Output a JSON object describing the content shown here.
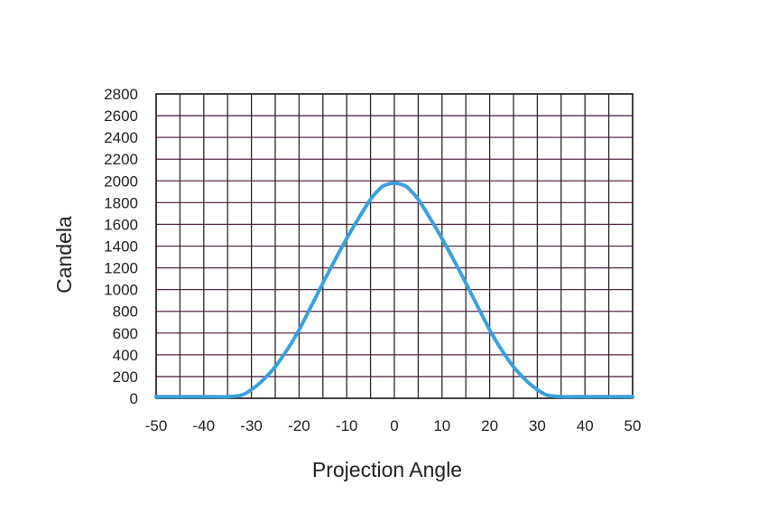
{
  "chart_data": {
    "type": "line",
    "title": "",
    "xlabel": "Projection Angle",
    "ylabel": "Candela",
    "xlim": [
      -50,
      50
    ],
    "ylim": [
      0,
      2800
    ],
    "xticks": [
      -50,
      -40,
      -30,
      -20,
      -10,
      0,
      10,
      20,
      30,
      40,
      50
    ],
    "yticks": [
      0,
      200,
      400,
      600,
      800,
      1000,
      1200,
      1400,
      1600,
      1800,
      2000,
      2200,
      2400,
      2600,
      2800
    ],
    "x_minor_step": 5,
    "grid": true,
    "legend": "none",
    "series": [
      {
        "color": "#3aa0dc",
        "x": [
          -50,
          -45,
          -40,
          -35,
          -32,
          -30,
          -28,
          -25,
          -22,
          -20,
          -18,
          -15,
          -12,
          -10,
          -8,
          -5,
          -3,
          -2,
          0,
          2,
          3,
          5,
          8,
          10,
          12,
          15,
          18,
          20,
          22,
          25,
          28,
          30,
          32,
          35,
          40,
          45,
          50
        ],
        "y": [
          15,
          15,
          15,
          15,
          30,
          80,
          150,
          290,
          480,
          630,
          800,
          1060,
          1310,
          1470,
          1620,
          1830,
          1930,
          1960,
          1980,
          1960,
          1930,
          1830,
          1620,
          1470,
          1310,
          1060,
          800,
          630,
          480,
          290,
          150,
          80,
          30,
          15,
          15,
          15,
          15
        ]
      }
    ]
  },
  "colors": {
    "grid_horizontal": "#5a2a4a",
    "grid_vertical": "#2a2a2a",
    "curve": "#3aa0dc"
  }
}
